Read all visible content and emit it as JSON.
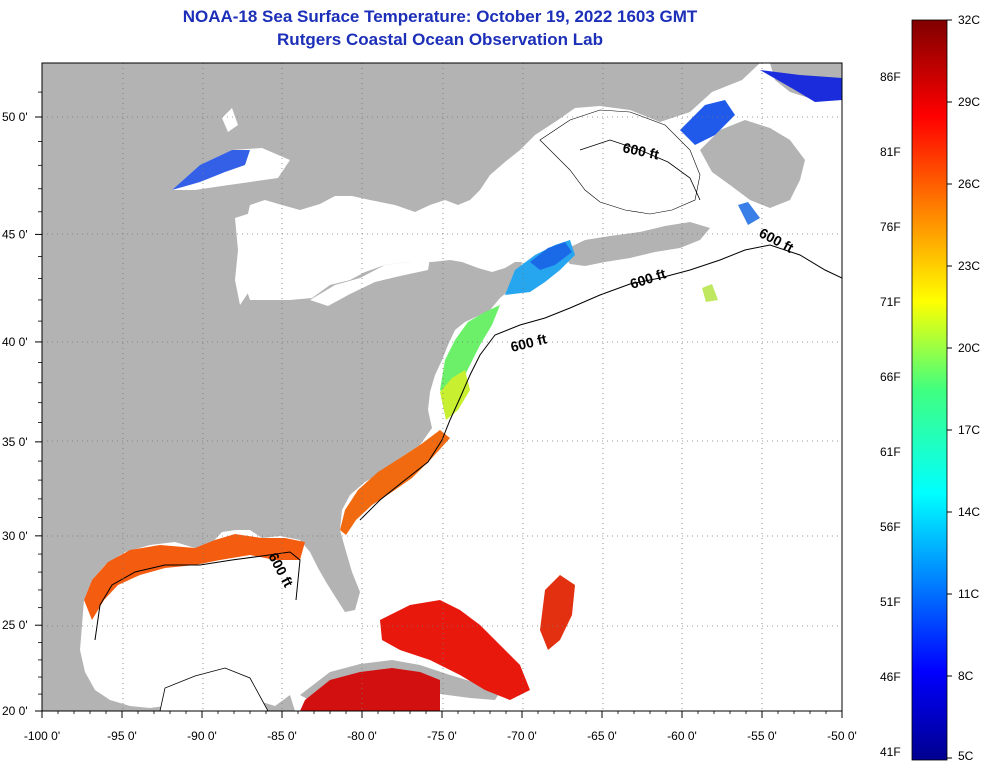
{
  "header": {
    "title": "NOAA-18 Sea Surface Temperature:  October 19, 2022 1603 GMT",
    "subtitle": "Rutgers Coastal Ocean Observation Lab"
  },
  "axes": {
    "lon_ticks": [
      {
        "value": -100,
        "label": "-100 0'"
      },
      {
        "value": -95,
        "label": "-95 0'"
      },
      {
        "value": -90,
        "label": "-90 0'"
      },
      {
        "value": -85,
        "label": "-85 0'"
      },
      {
        "value": -80,
        "label": "-80 0'"
      },
      {
        "value": -75,
        "label": "-75 0'"
      },
      {
        "value": -70,
        "label": "-70 0'"
      },
      {
        "value": -65,
        "label": "-65 0'"
      },
      {
        "value": -60,
        "label": "-60 0'"
      },
      {
        "value": -55,
        "label": "-55 0'"
      },
      {
        "value": -50,
        "label": "-50 0'"
      }
    ],
    "lat_ticks": [
      {
        "value": 50,
        "label": "50 0'"
      },
      {
        "value": 45,
        "label": "45 0'"
      },
      {
        "value": 40,
        "label": "40 0'"
      },
      {
        "value": 35,
        "label": "35 0'"
      },
      {
        "value": 30,
        "label": "30 0'"
      },
      {
        "value": 25,
        "label": "25 0'"
      },
      {
        "value": 20,
        "label": "20 0'"
      }
    ]
  },
  "contour_labels": [
    {
      "text": "600 ft"
    },
    {
      "text": "600 ft"
    },
    {
      "text": "600 ft"
    },
    {
      "text": "600 ft"
    },
    {
      "text": "600 ft"
    }
  ],
  "colorbar": {
    "celsius": [
      "32C",
      "29C",
      "26C",
      "23C",
      "20C",
      "17C",
      "14C",
      "11C",
      "8C",
      "5C"
    ],
    "fahrenheit": [
      "86F",
      "81F",
      "76F",
      "71F",
      "66F",
      "61F",
      "56F",
      "51F",
      "46F",
      "41F"
    ]
  },
  "colors": {
    "land": "#b3b3b3",
    "ocean": "#ffffff",
    "title": "#1c2fb8"
  }
}
